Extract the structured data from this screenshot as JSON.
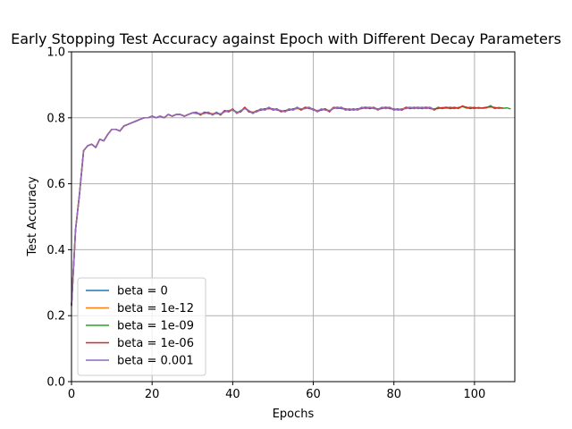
{
  "chart_data": {
    "type": "line",
    "title": "Early Stopping Test Accuracy against Epoch with Different Decay Parameters",
    "xlabel": "Epochs",
    "ylabel": "Test Accuracy",
    "xlim": [
      0,
      110
    ],
    "ylim": [
      0.0,
      1.0
    ],
    "xticks": [
      0,
      20,
      40,
      60,
      80,
      100
    ],
    "yticks": [
      0.0,
      0.2,
      0.4,
      0.6,
      0.8,
      1.0
    ],
    "xtick_labels": [
      "0",
      "20",
      "40",
      "60",
      "80",
      "100"
    ],
    "ytick_labels": [
      "0.0",
      "0.2",
      "0.4",
      "0.6",
      "0.8",
      "1.0"
    ],
    "grid": true,
    "legend_position": "lower-left",
    "base_curve": [
      [
        0,
        0.23
      ],
      [
        1,
        0.46
      ],
      [
        2,
        0.57
      ],
      [
        3,
        0.7
      ],
      [
        4,
        0.715
      ],
      [
        5,
        0.72
      ],
      [
        6,
        0.71
      ],
      [
        7,
        0.735
      ],
      [
        8,
        0.73
      ],
      [
        9,
        0.75
      ],
      [
        10,
        0.765
      ],
      [
        11,
        0.765
      ],
      [
        12,
        0.76
      ],
      [
        13,
        0.775
      ],
      [
        14,
        0.78
      ],
      [
        15,
        0.785
      ],
      [
        16,
        0.79
      ],
      [
        17,
        0.795
      ],
      [
        18,
        0.8
      ],
      [
        19,
        0.8
      ],
      [
        20,
        0.805
      ],
      [
        21,
        0.8
      ],
      [
        22,
        0.805
      ],
      [
        23,
        0.8
      ],
      [
        24,
        0.81
      ],
      [
        25,
        0.805
      ],
      [
        26,
        0.81
      ],
      [
        27,
        0.81
      ],
      [
        28,
        0.805
      ],
      [
        29,
        0.81
      ],
      [
        30,
        0.815
      ],
      [
        31,
        0.815
      ],
      [
        32,
        0.81
      ],
      [
        33,
        0.815
      ],
      [
        34,
        0.815
      ],
      [
        35,
        0.81
      ],
      [
        36,
        0.815
      ],
      [
        37,
        0.81
      ],
      [
        38,
        0.82
      ],
      [
        39,
        0.82
      ],
      [
        40,
        0.825
      ],
      [
        41,
        0.815
      ],
      [
        42,
        0.82
      ],
      [
        43,
        0.83
      ],
      [
        44,
        0.82
      ],
      [
        45,
        0.815
      ],
      [
        46,
        0.82
      ],
      [
        47,
        0.825
      ],
      [
        48,
        0.825
      ],
      [
        49,
        0.83
      ],
      [
        50,
        0.825
      ],
      [
        51,
        0.825
      ],
      [
        52,
        0.82
      ],
      [
        53,
        0.82
      ],
      [
        54,
        0.825
      ],
      [
        55,
        0.825
      ],
      [
        56,
        0.83
      ],
      [
        57,
        0.825
      ],
      [
        58,
        0.83
      ],
      [
        59,
        0.83
      ],
      [
        60,
        0.825
      ],
      [
        61,
        0.82
      ],
      [
        62,
        0.825
      ],
      [
        63,
        0.825
      ],
      [
        64,
        0.82
      ],
      [
        65,
        0.83
      ],
      [
        66,
        0.83
      ],
      [
        67,
        0.83
      ],
      [
        68,
        0.825
      ],
      [
        69,
        0.825
      ],
      [
        70,
        0.825
      ],
      [
        71,
        0.825
      ],
      [
        72,
        0.83
      ],
      [
        73,
        0.83
      ],
      [
        74,
        0.83
      ],
      [
        75,
        0.83
      ],
      [
        76,
        0.825
      ],
      [
        77,
        0.83
      ],
      [
        78,
        0.83
      ],
      [
        79,
        0.83
      ],
      [
        80,
        0.825
      ],
      [
        81,
        0.825
      ],
      [
        82,
        0.825
      ],
      [
        83,
        0.83
      ],
      [
        84,
        0.83
      ],
      [
        85,
        0.83
      ],
      [
        86,
        0.83
      ],
      [
        87,
        0.83
      ],
      [
        88,
        0.83
      ],
      [
        89,
        0.83
      ],
      [
        90,
        0.825
      ],
      [
        91,
        0.83
      ],
      [
        92,
        0.83
      ],
      [
        93,
        0.83
      ],
      [
        94,
        0.83
      ],
      [
        95,
        0.83
      ],
      [
        96,
        0.83
      ],
      [
        97,
        0.835
      ],
      [
        98,
        0.83
      ],
      [
        99,
        0.83
      ],
      [
        100,
        0.83
      ],
      [
        101,
        0.83
      ],
      [
        102,
        0.83
      ],
      [
        103,
        0.83
      ],
      [
        104,
        0.835
      ],
      [
        105,
        0.83
      ],
      [
        106,
        0.83
      ],
      [
        107,
        0.83
      ],
      [
        108,
        0.83
      ],
      [
        109,
        0.825
      ]
    ],
    "series": [
      {
        "name": "beta = 0",
        "color": "#1f77b4",
        "x_end": 95
      },
      {
        "name": "beta = 1e-12",
        "color": "#ff7f0e",
        "x_end": 100
      },
      {
        "name": "beta = 1e-09",
        "color": "#2ca02c",
        "x_end": 109
      },
      {
        "name": "beta = 1e-06",
        "color": "#d62728",
        "x_end": 107
      },
      {
        "name": "beta = 0.001",
        "color": "#9467bd",
        "x_end": 90
      }
    ]
  }
}
